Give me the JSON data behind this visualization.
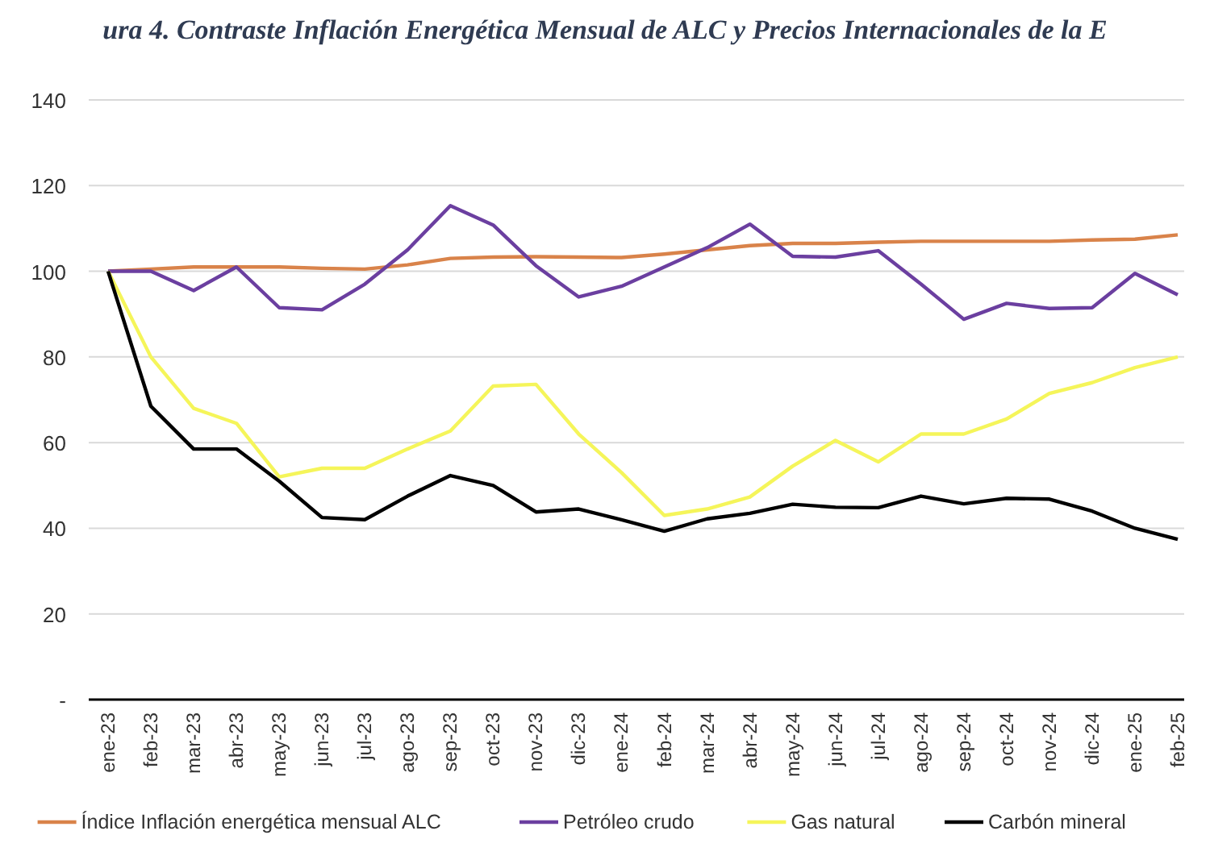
{
  "chart_data": {
    "type": "line",
    "title": "ura 4. Contraste Inflación Energética Mensual de ALC y Precios Internacionales de la E",
    "categories": [
      "ene-23",
      "feb-23",
      "mar-23",
      "abr-23",
      "may-23",
      "jun-23",
      "jul-23",
      "ago-23",
      "sep-23",
      "oct-23",
      "nov-23",
      "dic-23",
      "ene-24",
      "feb-24",
      "mar-24",
      "abr-24",
      "may-24",
      "jun-24",
      "jul-24",
      "ago-24",
      "sep-24",
      "oct-24",
      "nov-24",
      "dic-24",
      "ene-25",
      "feb-25"
    ],
    "series": [
      {
        "name": "Índice Inflación energética mensual ALC",
        "color": "#d9834a",
        "values": [
          100,
          100.5,
          101,
          101,
          101,
          100.7,
          100.5,
          101.5,
          103,
          103.3,
          103.4,
          103.3,
          103.2,
          104,
          105,
          106,
          106.5,
          106.5,
          106.8,
          107,
          107,
          107,
          107,
          107.3,
          107.5,
          108.5
        ]
      },
      {
        "name": "Petróleo crudo",
        "color": "#6b3fa0",
        "values": [
          100,
          100,
          95.5,
          101,
          91.5,
          91,
          97,
          105,
          115.3,
          110.8,
          101.3,
          94,
          96.5,
          101,
          105.5,
          111,
          103.5,
          103.3,
          104.8,
          97,
          88.8,
          92.5,
          91.3,
          91.5,
          99.5,
          94.5
        ]
      },
      {
        "name": "Gas natural",
        "color": "#f5f55a",
        "values": [
          100,
          80,
          68,
          64.5,
          52,
          54,
          54,
          58.5,
          62.7,
          73.2,
          73.6,
          62,
          53,
          43,
          44.5,
          47.3,
          54.5,
          60.5,
          55.5,
          62,
          62,
          65.5,
          71.5,
          74,
          77.5,
          80
        ]
      },
      {
        "name": "Carbón mineral",
        "color": "#000000",
        "values": [
          100,
          68.5,
          58.5,
          58.5,
          51,
          42.5,
          42,
          47.5,
          52.3,
          50,
          43.8,
          44.5,
          42,
          39.3,
          42.2,
          43.5,
          45.6,
          44.9,
          44.8,
          47.5,
          45.7,
          47,
          46.8,
          44,
          40,
          37.4
        ]
      }
    ],
    "ylim": [
      0,
      140
    ],
    "yticks": [
      {
        "value": 0,
        "label": "-"
      },
      20,
      40,
      60,
      80,
      100,
      120,
      140
    ],
    "grid": "y",
    "legend": "bottom"
  }
}
